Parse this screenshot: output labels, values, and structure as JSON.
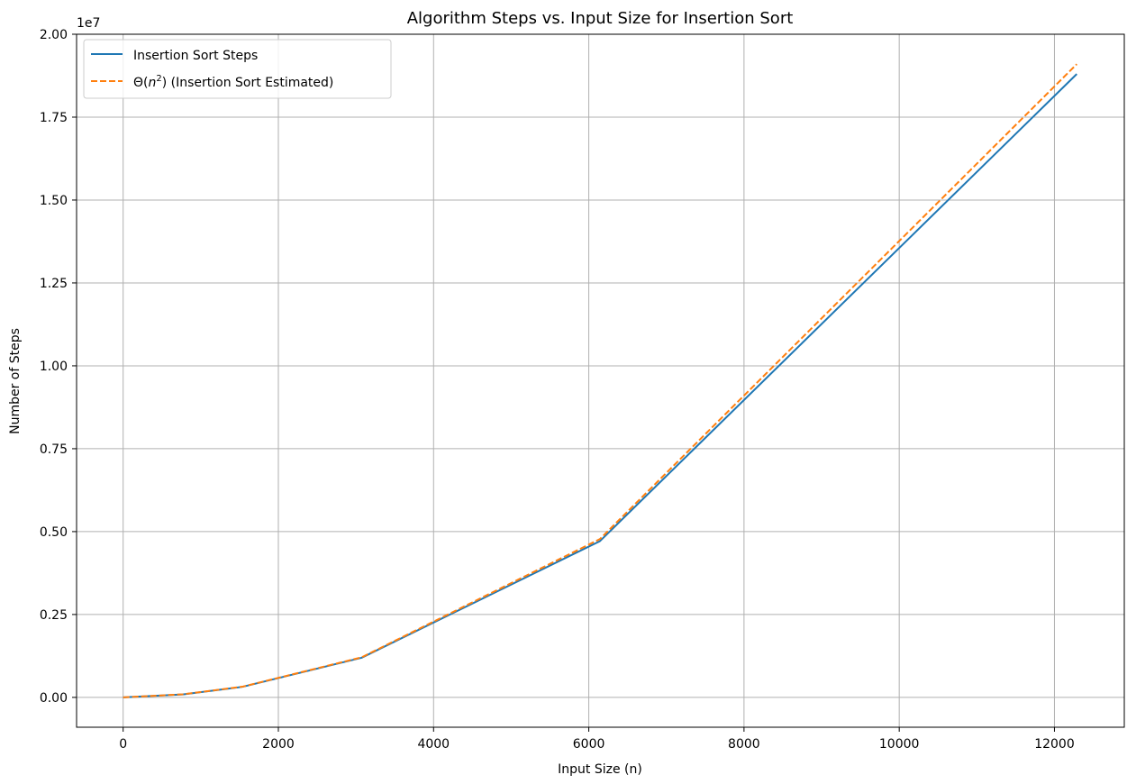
{
  "chart_data": {
    "type": "line",
    "title": "Algorithm Steps vs. Input Size for Insertion Sort",
    "xlabel": "Input Size (n)",
    "ylabel": "Number of Steps",
    "y_offset_label": "1e7",
    "xlim": [
      -600,
      12900
    ],
    "ylim": [
      -0.09,
      2.0
    ],
    "y_scale_factor": 10000000,
    "x_ticks": [
      0,
      2000,
      4000,
      6000,
      8000,
      10000,
      12000
    ],
    "x_tick_labels": [
      "0",
      "2000",
      "4000",
      "6000",
      "8000",
      "10000",
      "12000"
    ],
    "y_ticks": [
      0,
      0.25,
      0.5,
      0.75,
      1.0,
      1.25,
      1.5,
      1.75,
      2.0
    ],
    "y_tick_labels": [
      "0.00",
      "0.25",
      "0.50",
      "0.75",
      "1.00",
      "1.25",
      "1.50",
      "1.75",
      "2.00"
    ],
    "grid": true,
    "legend_position": "top-left",
    "series": [
      {
        "name": "Insertion Sort Steps",
        "color": "#1f77b4",
        "style": "solid",
        "x": [
          0,
          768,
          1536,
          3072,
          6144,
          12288
        ],
        "y": [
          0,
          0.0088,
          0.0318,
          0.1195,
          0.4713,
          1.88
        ]
      },
      {
        "name": "Θ(n²) (Insertion Sort Estimated)",
        "color": "#ff7f0e",
        "style": "dashed",
        "x": [
          0,
          768,
          1536,
          3072,
          6144,
          12288
        ],
        "y": [
          0,
          0.0093,
          0.0322,
          0.1208,
          0.4776,
          1.9098
        ]
      }
    ]
  },
  "legend": {
    "series0_label": "Insertion Sort Steps",
    "series1_label_prefix": "Θ(",
    "series1_label_n": "n",
    "series1_label_sup": "2",
    "series1_label_suffix": ") (Insertion Sort Estimated)"
  }
}
